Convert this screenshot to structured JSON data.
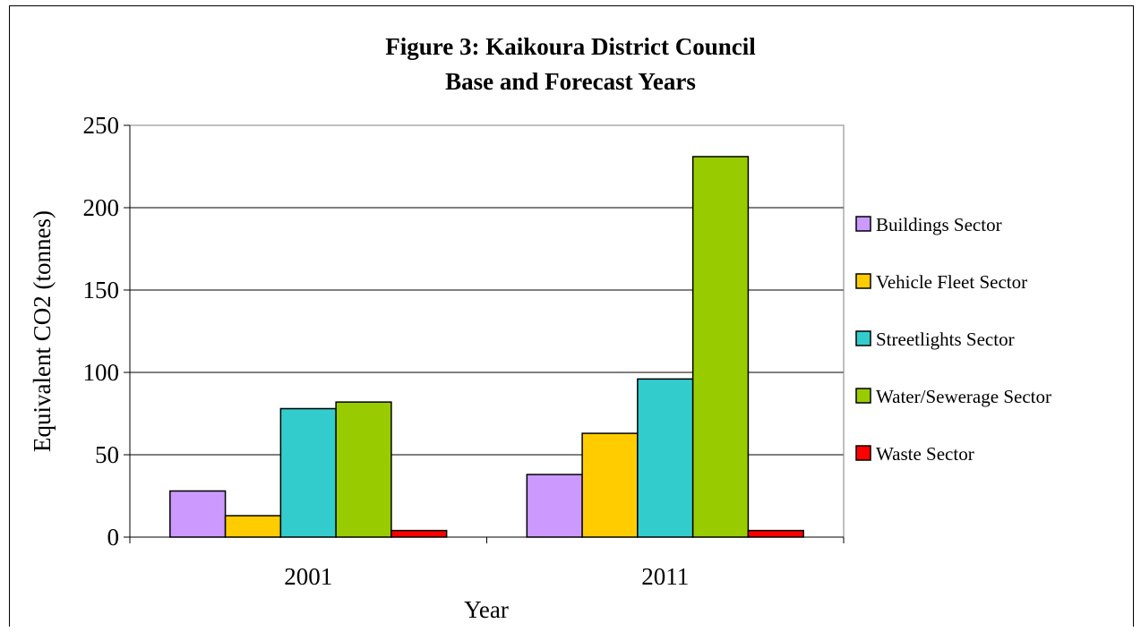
{
  "chart_data": {
    "type": "bar",
    "title": "Figure 3: Kaikoura District Council",
    "subtitle": "Base and Forecast Years",
    "xlabel": "Year",
    "ylabel": "Equivalent CO2 (tonnes)",
    "categories": [
      "2001",
      "2011"
    ],
    "ylim": [
      0,
      250
    ],
    "yticks": [
      0,
      50,
      100,
      150,
      200,
      250
    ],
    "grid": true,
    "legend_position": "right",
    "series": [
      {
        "name": "Buildings Sector",
        "color": "#cc99ff",
        "values": [
          28,
          38
        ]
      },
      {
        "name": "Vehicle Fleet Sector",
        "color": "#ffcc00",
        "values": [
          13,
          63
        ]
      },
      {
        "name": "Streetlights Sector",
        "color": "#33cccc",
        "values": [
          78,
          96
        ]
      },
      {
        "name": "Water/Sewerage Sector",
        "color": "#99cc00",
        "values": [
          82,
          231
        ]
      },
      {
        "name": "Waste Sector",
        "color": "#ff0000",
        "values": [
          4,
          4
        ]
      }
    ]
  }
}
